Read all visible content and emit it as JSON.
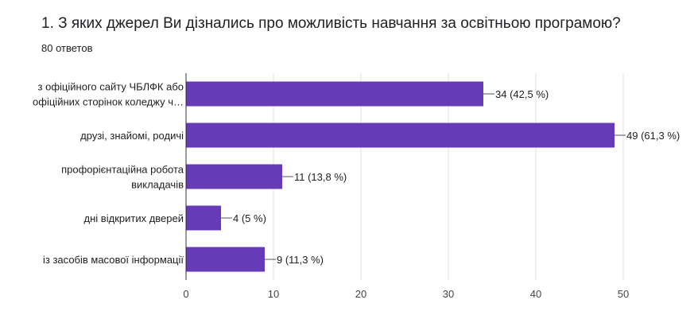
{
  "question": {
    "title": "1.  З яких джерел Ви дізнались про можливість навчання за освітньою програмою?",
    "response_count": "80 ответов"
  },
  "colors": {
    "bar": "#673ab7",
    "grid": "#e0e0e0",
    "axis": "#333333",
    "text": "#202124"
  },
  "chart_data": {
    "type": "bar",
    "orientation": "horizontal",
    "categories": [
      [
        "з офіційного сайту ЧБЛФК або",
        "офіційних сторінок коледжу ч…"
      ],
      [
        "друзі, знайомі, родичі"
      ],
      [
        "профорієнтаційна робота",
        "викладачів"
      ],
      [
        "дні відкритих дверей"
      ],
      [
        "із засобів масової інформації"
      ]
    ],
    "values": [
      34,
      49,
      11,
      4,
      9
    ],
    "data_labels": [
      "34 (42,5 %)",
      "49 (61,3 %)",
      "11 (13,8 %)",
      "4 (5 %)",
      "9 (11,3 %)"
    ],
    "xlim": [
      0,
      50
    ],
    "x_ticks": [
      0,
      10,
      20,
      30,
      40,
      50
    ],
    "grid": true,
    "legend": "none"
  }
}
